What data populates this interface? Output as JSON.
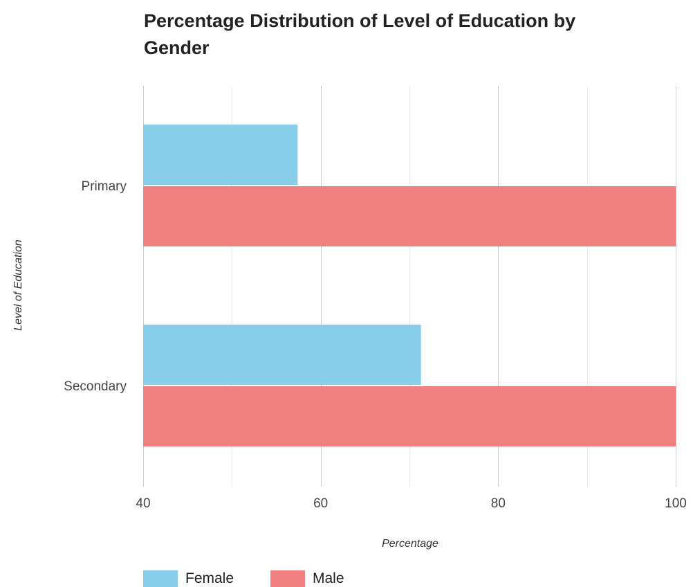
{
  "chart_data": {
    "type": "bar",
    "orientation": "horizontal",
    "title": "Percentage Distribution of Level of Education by Gender",
    "title_lines": [
      "Percentage Distribution of Level of Education by",
      "Gender"
    ],
    "xlabel": "Percentage",
    "ylabel": "Level of Education",
    "categories": [
      "Primary",
      "Secondary"
    ],
    "xlim": [
      40,
      100
    ],
    "xticks": [
      40,
      60,
      80,
      100
    ],
    "grid": true,
    "legend_position": "bottom-left",
    "series": [
      {
        "name": "Female",
        "color": "#87CEEB",
        "values": [
          57.4,
          71.3
        ]
      },
      {
        "name": "Male",
        "color": "#F08080",
        "values": [
          100,
          100
        ]
      }
    ]
  }
}
